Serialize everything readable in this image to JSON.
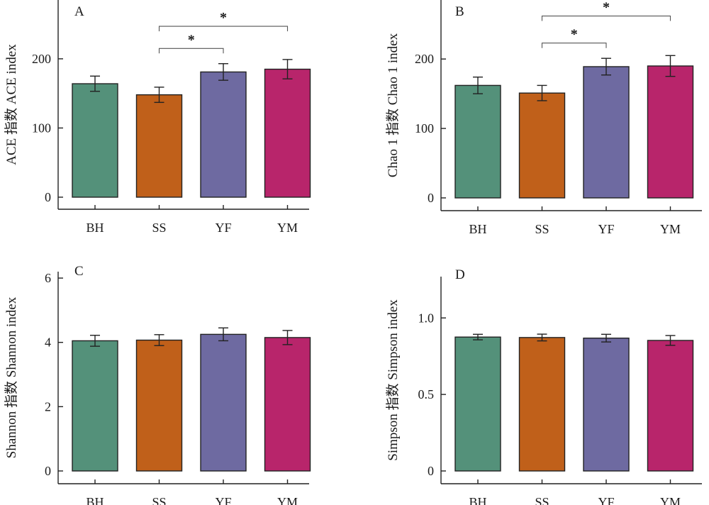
{
  "chart_data": [
    {
      "type": "bar",
      "panel_label": "A",
      "ylabel": "ACE 指数 ACE index",
      "categories": [
        "BH",
        "SS",
        "YF",
        "YM"
      ],
      "values": [
        164,
        148,
        181,
        185
      ],
      "errors": [
        11,
        11,
        12,
        14
      ],
      "colors": [
        "#54917a",
        "#c0601a",
        "#6e6aa1",
        "#b8256b"
      ],
      "ylim": [
        0,
        285
      ],
      "yticks": [
        0,
        100,
        200
      ],
      "ytick_labels": [
        "0",
        "100",
        "200"
      ],
      "significance": [
        {
          "from": "SS",
          "to": "YF",
          "label": "*",
          "y": 215
        },
        {
          "from": "SS",
          "to": "YM",
          "label": "*",
          "y": 247
        }
      ]
    },
    {
      "type": "bar",
      "panel_label": "B",
      "ylabel": "Chao 1 指数 Chao 1 index",
      "categories": [
        "BH",
        "SS",
        "YF",
        "YM"
      ],
      "values": [
        162,
        151,
        189,
        190
      ],
      "errors": [
        12,
        11,
        12,
        15
      ],
      "colors": [
        "#54917a",
        "#c0601a",
        "#6e6aa1",
        "#b8256b"
      ],
      "ylim": [
        0,
        285
      ],
      "yticks": [
        0,
        100,
        200
      ],
      "ytick_labels": [
        "0",
        "100",
        "200"
      ],
      "significance": [
        {
          "from": "SS",
          "to": "YF",
          "label": "*",
          "y": 223
        },
        {
          "from": "SS",
          "to": "YM",
          "label": "*",
          "y": 262
        }
      ]
    },
    {
      "type": "bar",
      "panel_label": "C",
      "ylabel": "Shannon 指数 Shannon index",
      "categories": [
        "BH",
        "SS",
        "YF",
        "YM"
      ],
      "values": [
        4.05,
        4.07,
        4.25,
        4.15
      ],
      "errors": [
        0.17,
        0.17,
        0.2,
        0.22
      ],
      "colors": [
        "#54917a",
        "#c0601a",
        "#6e6aa1",
        "#b8256b"
      ],
      "ylim": [
        0,
        6.2
      ],
      "yticks": [
        0,
        2,
        4,
        6
      ],
      "ytick_labels": [
        "0",
        "2",
        "4",
        "6"
      ],
      "significance": []
    },
    {
      "type": "bar",
      "panel_label": "D",
      "ylabel": "Simpson 指数 Simpson index",
      "categories": [
        "BH",
        "SS",
        "YF",
        "YM"
      ],
      "values": [
        0.875,
        0.872,
        0.868,
        0.853
      ],
      "errors": [
        0.018,
        0.022,
        0.025,
        0.032
      ],
      "colors": [
        "#54917a",
        "#c0601a",
        "#6e6aa1",
        "#b8256b"
      ],
      "ylim": [
        0,
        1.27
      ],
      "yticks": [
        0,
        0.5,
        1.0
      ],
      "ytick_labels": [
        "0",
        "0.5",
        "1.0"
      ],
      "significance": []
    }
  ]
}
